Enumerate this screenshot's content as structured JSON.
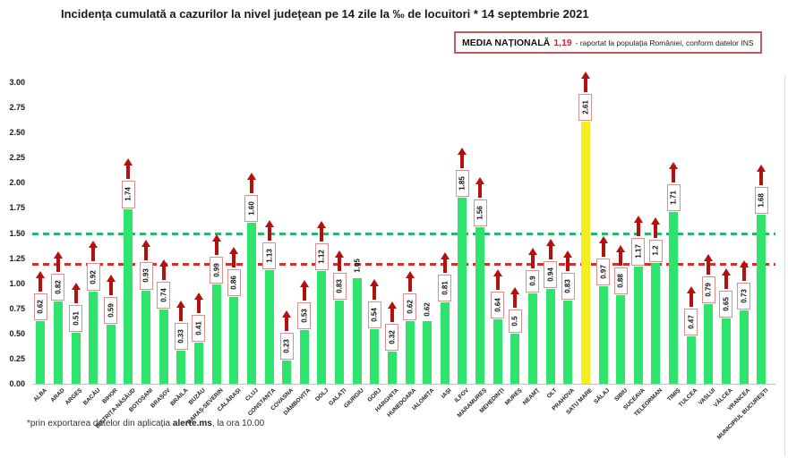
{
  "chart_data": {
    "type": "bar",
    "title": "Incidența cumulată a cazurilor la nivel județean pe 14 zile la ‰ de locuitori * 14 septembrie 2021",
    "xlabel": "",
    "ylabel": "",
    "ylim": [
      0,
      3
    ],
    "grid": false,
    "legend_position": "top-right",
    "yticks": [
      "3.00",
      "2.75",
      "2.50",
      "2.25",
      "2.00",
      "1.75",
      "1.50",
      "1.25",
      "1.00",
      "0.75",
      "0.50",
      "0.25",
      "0.00"
    ],
    "bar_color": "#2ee46c",
    "highlight_color": "#f5ee1e",
    "arrow_color": "#b3100e",
    "box_border_color": "#d89090",
    "reference_lines": [
      {
        "name": "green-threshold-line",
        "value": 1.5,
        "color": "#2eb36d",
        "style": "dashed"
      },
      {
        "name": "national-average-line",
        "value": 1.19,
        "color": "#cc3333",
        "style": "dashed"
      }
    ],
    "bars": [
      {
        "name": "ALBA",
        "value": 0.62,
        "label": "0.62"
      },
      {
        "name": "ARAD",
        "value": 0.82,
        "label": "0.82"
      },
      {
        "name": "ARGEȘ",
        "value": 0.51,
        "label": "0.51"
      },
      {
        "name": "BACĂU",
        "value": 0.92,
        "label": "0.92"
      },
      {
        "name": "BIHOR",
        "value": 0.59,
        "label": "0.59"
      },
      {
        "name": "BISTRIȚA-NĂSĂUD",
        "value": 1.74,
        "label": "1.74"
      },
      {
        "name": "BOTOȘANI",
        "value": 0.93,
        "label": "0.93"
      },
      {
        "name": "BRAȘOV",
        "value": 0.74,
        "label": "0.74"
      },
      {
        "name": "BRĂILA",
        "value": 0.33,
        "label": "0.33"
      },
      {
        "name": "BUZĂU",
        "value": 0.41,
        "label": "0.41"
      },
      {
        "name": "CARAȘ-SEVERIN",
        "value": 0.99,
        "label": "0.99"
      },
      {
        "name": "CĂLĂRAȘI",
        "value": 0.86,
        "label": "0.86"
      },
      {
        "name": "CLUJ",
        "value": 1.6,
        "label": "1.60"
      },
      {
        "name": "CONSTANȚA",
        "value": 1.13,
        "label": "1.13"
      },
      {
        "name": "COVASNA",
        "value": 0.23,
        "label": "0.23"
      },
      {
        "name": "DÂMBOVIȚA",
        "value": 0.53,
        "label": "0.53"
      },
      {
        "name": "DOLJ",
        "value": 1.12,
        "label": "1.12"
      },
      {
        "name": "GALAȚI",
        "value": 0.83,
        "label": "0.83"
      },
      {
        "name": "GIURGIU",
        "value": 1.05,
        "label": "1.05",
        "plain": true
      },
      {
        "name": "GORJ",
        "value": 0.54,
        "label": "0.54"
      },
      {
        "name": "HARGHITA",
        "value": 0.32,
        "label": "0.32"
      },
      {
        "name": "HUNEDOARA",
        "value": 0.62,
        "label": "0.62"
      },
      {
        "name": "IALOMIȚA",
        "value": 0.62,
        "label": "0.62",
        "plain": true
      },
      {
        "name": "IAȘI",
        "value": 0.81,
        "label": "0.81"
      },
      {
        "name": "ILFOV",
        "value": 1.85,
        "label": "1.85"
      },
      {
        "name": "MARAMUREȘ",
        "value": 1.56,
        "label": "1.56"
      },
      {
        "name": "MEHEDINȚI",
        "value": 0.64,
        "label": "0.64"
      },
      {
        "name": "MUREȘ",
        "value": 0.5,
        "label": "0.5"
      },
      {
        "name": "NEAMȚ",
        "value": 0.9,
        "label": "0.9"
      },
      {
        "name": "OLT",
        "value": 0.94,
        "label": "0.94"
      },
      {
        "name": "PRAHOVA",
        "value": 0.83,
        "label": "0.83"
      },
      {
        "name": "SATU MARE",
        "value": 2.61,
        "label": "2.61",
        "highlight": true
      },
      {
        "name": "SĂLAJ",
        "value": 0.97,
        "label": "0.97"
      },
      {
        "name": "SIBIU",
        "value": 0.88,
        "label": "0.88"
      },
      {
        "name": "SUCEAVA",
        "value": 1.17,
        "label": "1.17"
      },
      {
        "name": "TELEORMAN",
        "value": 1.2,
        "label": "1.2"
      },
      {
        "name": "TIMIȘ",
        "value": 1.71,
        "label": "1.71"
      },
      {
        "name": "TULCEA",
        "value": 0.47,
        "label": "0.47"
      },
      {
        "name": "VASLUI",
        "value": 0.79,
        "label": "0.79"
      },
      {
        "name": "VÂLCEA",
        "value": 0.65,
        "label": "0.65"
      },
      {
        "name": "VRANCEA",
        "value": 0.73,
        "label": "0.73"
      },
      {
        "name": "MUNICIPIUL BUCUREȘTI",
        "value": 1.68,
        "label": "1.68"
      }
    ]
  },
  "legend": {
    "label": "MEDIA NAȚIONALĂ",
    "value": "1,19",
    "suffix": "- raportat la populația României, conform datelor INS"
  },
  "footnote": {
    "prefix": "*prin exportarea datelor din aplicația ",
    "bold": "alerte.ms",
    "suffix": ", la ora 10.00"
  }
}
